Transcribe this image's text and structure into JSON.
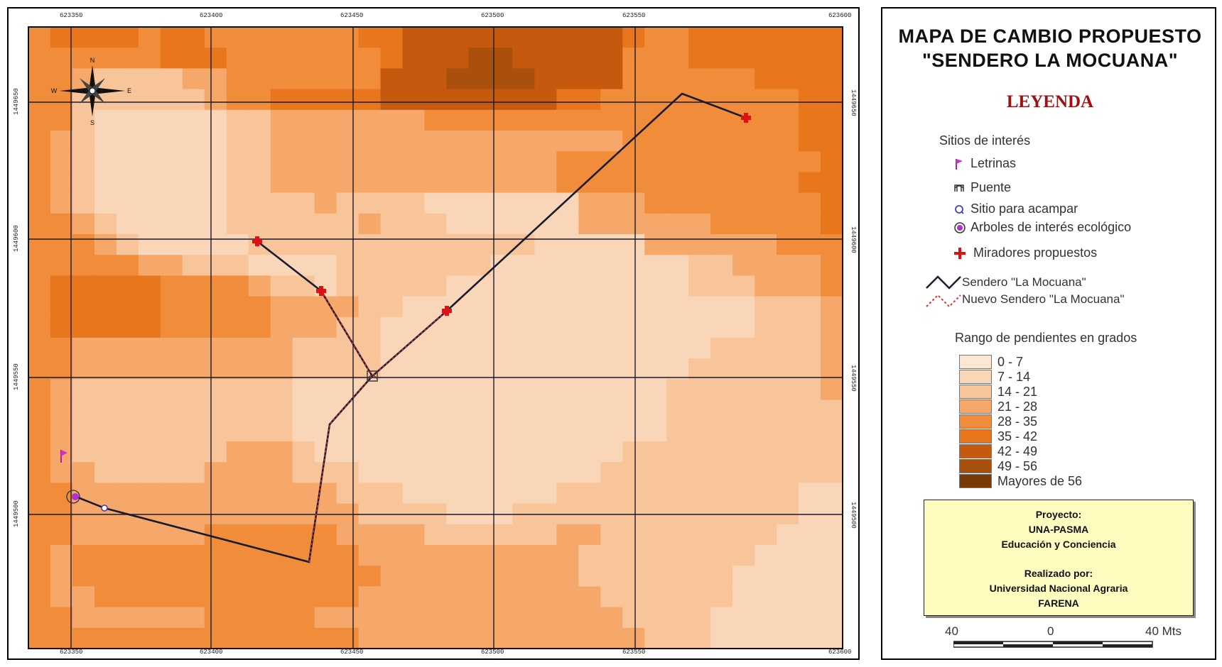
{
  "map": {
    "x_ticks": [
      "623350",
      "623400",
      "623450",
      "623500",
      "623550",
      "623600"
    ],
    "y_ticks": [
      "1449650",
      "1449600",
      "1449550",
      "1449500"
    ],
    "compass": {
      "n": "N",
      "s": "S",
      "e": "E",
      "w": "W"
    }
  },
  "legend_panel": {
    "title_line1": "MAPA DE CAMBIO PROPUESTO",
    "title_line2": "\"SENDERO LA MOCUANA\"",
    "leyenda": "LEYENDA",
    "sitios_heading": "Sitios de interés",
    "sitios": [
      {
        "icon": "flag-icon",
        "label": "Letrinas"
      },
      {
        "icon": "bridge-icon",
        "label": "Puente"
      },
      {
        "icon": "camp-circle-icon",
        "label": "Sitio para acampar"
      },
      {
        "icon": "tree-icon",
        "label": "Arboles de interés ecológico"
      },
      {
        "icon": "red-cross-icon",
        "label": "Miradores propuestos"
      }
    ],
    "trail_existing": "Sendero \"La Mocuana\"",
    "trail_new": "Nuevo Sendero \"La Mocuana\"",
    "slope_heading": "Rango de pendientes en grados",
    "slope_classes": [
      {
        "label": "0 - 7",
        "color": "#fce7d4"
      },
      {
        "label": "7 - 14",
        "color": "#fad6b8"
      },
      {
        "label": "14 - 21",
        "color": "#f8c49a"
      },
      {
        "label": "21 - 28",
        "color": "#f5a86a"
      },
      {
        "label": "28 - 35",
        "color": "#f08c3a"
      },
      {
        "label": "35 - 42",
        "color": "#e8761c"
      },
      {
        "label": "42 - 49",
        "color": "#c55a0e"
      },
      {
        "label": "49 - 56",
        "color": "#a9500d"
      },
      {
        "label": "Mayores de 56",
        "color": "#7a3a08"
      }
    ],
    "project_box": {
      "line1": "Proyecto:",
      "line2": "UNA-PASMA",
      "line3": "Educación y Conciencia",
      "line4": "Realizado por:",
      "line5": "Universidad Nacional Agraria",
      "line6": "FARENA"
    },
    "scale": {
      "left": "40",
      "center": "0",
      "right": "40 Mts"
    }
  },
  "colors": {
    "trail": "#1a1a2e",
    "new_trail": "#e03030",
    "mirador": "#e01010",
    "grid": "#1a1a2e"
  }
}
